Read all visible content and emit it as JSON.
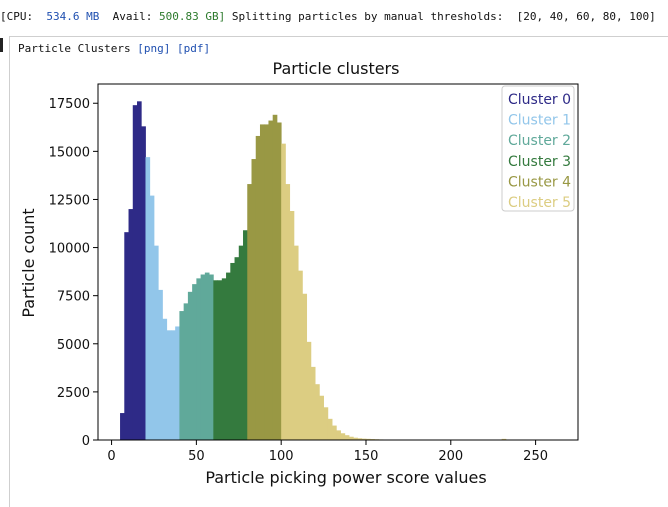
{
  "status": {
    "cpu_label": "[CPU:",
    "cpu_value": "534.6 MB",
    "avail_label": "Avail:",
    "avail_value": "500.83 GB]",
    "message": "Splitting particles by manual thresholds:",
    "thresholds": "[20, 40, 60, 80, 100]"
  },
  "panel": {
    "title": "Particle Clusters",
    "link_png": "[png]",
    "link_pdf": "[pdf]"
  },
  "colors": {
    "cluster0": "#2e2a87",
    "cluster1": "#92c6ea",
    "cluster2": "#60a99a",
    "cluster3": "#347a3e",
    "cluster4": "#999844",
    "cluster5": "#dccd82",
    "accent_link": "#1f4fb0"
  },
  "chart_data": {
    "type": "bar",
    "title": "Particle clusters",
    "xlabel": "Particle picking power score values",
    "ylabel": "Particle count",
    "xlim": [
      -8,
      275
    ],
    "ylim": [
      0,
      18500
    ],
    "xticks": [
      0,
      50,
      100,
      150,
      200,
      250
    ],
    "yticks": [
      0,
      2500,
      5000,
      7500,
      10000,
      12500,
      15000,
      17500
    ],
    "legend_position": "top-right",
    "bin_width": 2.5,
    "series": [
      {
        "name": "Cluster 0",
        "color_key": "cluster0",
        "x": [
          5,
          7.5,
          10,
          12.5,
          15,
          17.5
        ],
        "values": [
          1400,
          10800,
          12000,
          17400,
          17600,
          16300
        ]
      },
      {
        "name": "Cluster 1",
        "color_key": "cluster1",
        "x": [
          20,
          22.5,
          25,
          27.5,
          30,
          32.5,
          35,
          37.5
        ],
        "values": [
          14700,
          12700,
          10100,
          7800,
          6300,
          5700,
          5700,
          5900
        ]
      },
      {
        "name": "Cluster 2",
        "color_key": "cluster2",
        "x": [
          40,
          42.5,
          45,
          47.5,
          50,
          52.5,
          55,
          57.5
        ],
        "values": [
          6700,
          7100,
          7700,
          8100,
          8400,
          8600,
          8700,
          8600
        ]
      },
      {
        "name": "Cluster 3",
        "color_key": "cluster3",
        "x": [
          60,
          62.5,
          65,
          67.5,
          70,
          72.5,
          75,
          77.5
        ],
        "values": [
          8300,
          8300,
          8400,
          8700,
          9200,
          9500,
          10100,
          10900
        ]
      },
      {
        "name": "Cluster 4",
        "color_key": "cluster4",
        "x": [
          80,
          82.5,
          85,
          87.5,
          90,
          92.5,
          95,
          97.5
        ],
        "values": [
          13300,
          14600,
          15800,
          16400,
          16400,
          16600,
          16900,
          16500
        ]
      },
      {
        "name": "Cluster 5",
        "color_key": "cluster5",
        "x": [
          100,
          102.5,
          105,
          107.5,
          110,
          112.5,
          115,
          117.5,
          120,
          122.5,
          125,
          127.5,
          130,
          132.5,
          135,
          137.5,
          140,
          142.5,
          145,
          147.5,
          150,
          152.5,
          155,
          157.5,
          160,
          165,
          170,
          175,
          180,
          185,
          190,
          195,
          200,
          205,
          210,
          215,
          220,
          225,
          230,
          235,
          240,
          250,
          260
        ],
        "values": [
          15400,
          13300,
          11900,
          10100,
          8800,
          7600,
          5100,
          3800,
          2900,
          2300,
          1700,
          1100,
          750,
          500,
          350,
          250,
          170,
          120,
          90,
          70,
          60,
          50,
          40,
          30,
          25,
          20,
          15,
          12,
          10,
          10,
          8,
          8,
          6,
          6,
          5,
          5,
          4,
          4,
          60,
          4,
          3,
          3,
          2
        ]
      }
    ]
  }
}
